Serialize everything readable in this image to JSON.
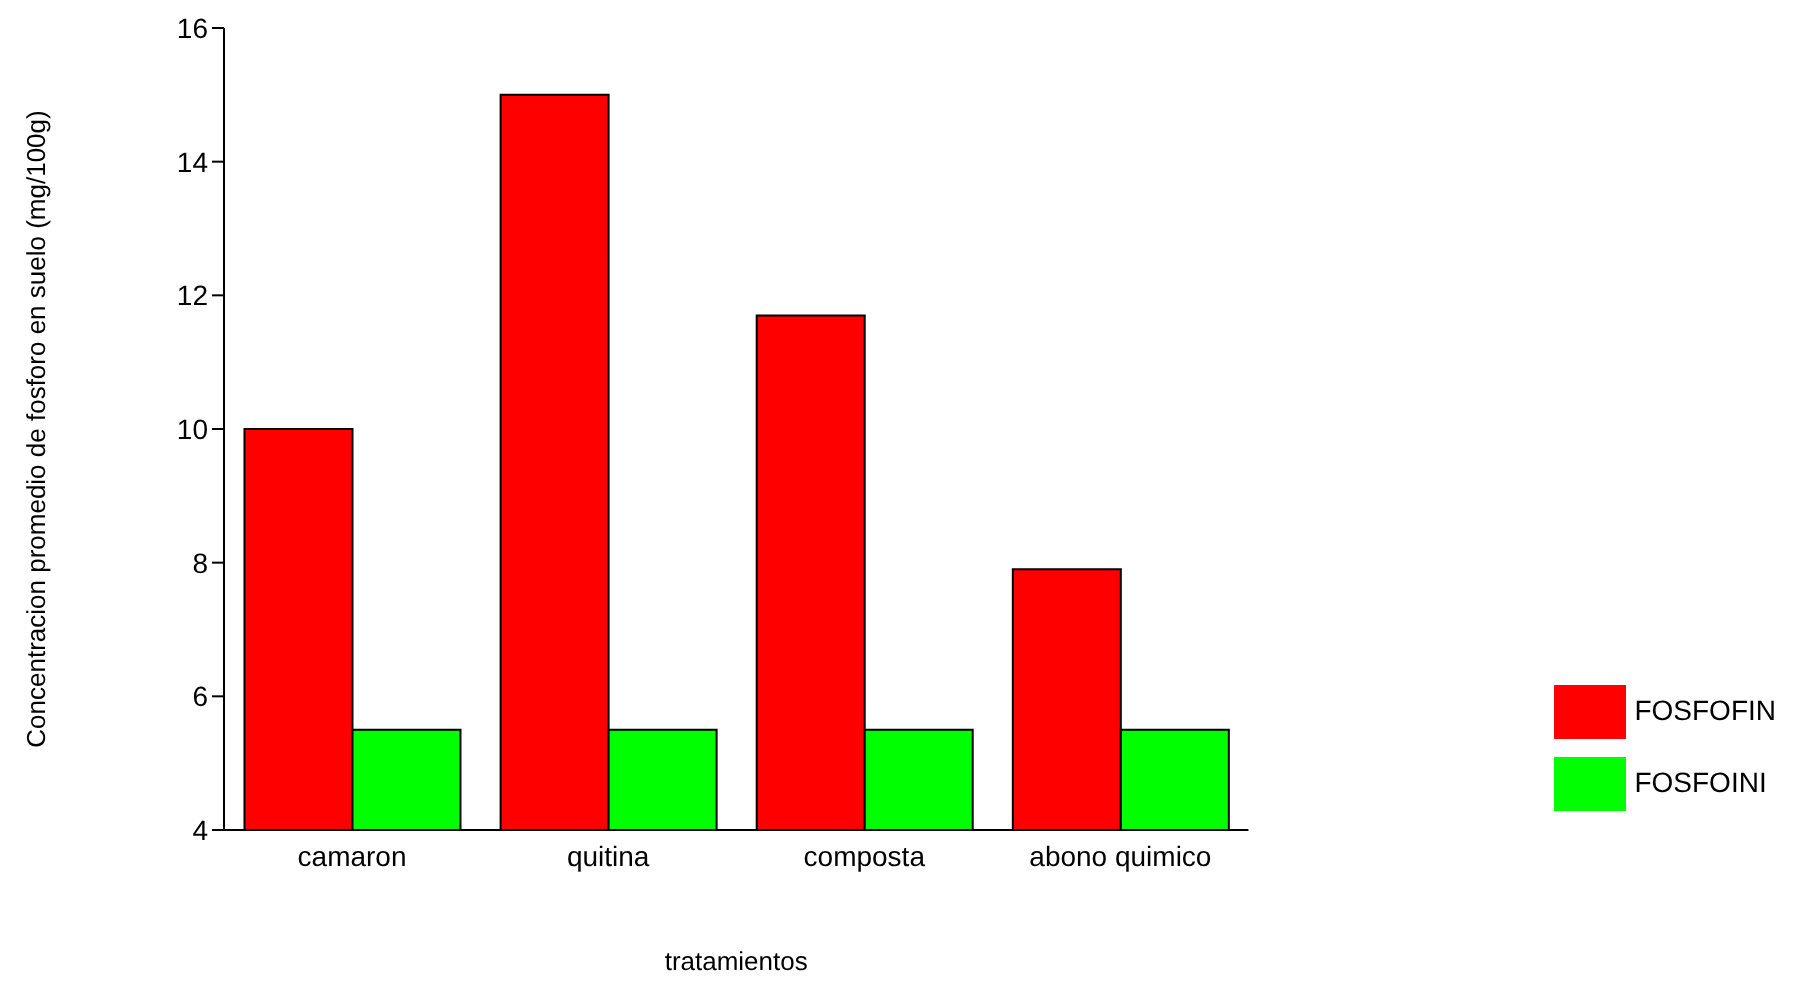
{
  "chart_data": {
    "type": "bar",
    "xlabel": "tratamientos",
    "ylabel": "Concentracion promedio de fosforo en suelo (mg/100g)",
    "categories": [
      "camaron",
      "quitina",
      "composta",
      "abono quimico"
    ],
    "series": [
      {
        "name": "FOSFOFIN",
        "color": "#ff0000",
        "values": [
          10.0,
          15.0,
          11.7,
          7.9
        ]
      },
      {
        "name": "FOSFOINI",
        "color": "#00ff00",
        "values": [
          5.5,
          5.5,
          5.5,
          5.5
        ]
      }
    ],
    "ylim": [
      4,
      16
    ],
    "yticks": [
      4,
      6,
      8,
      10,
      12,
      14,
      16
    ],
    "grid": false,
    "legend": "right"
  }
}
